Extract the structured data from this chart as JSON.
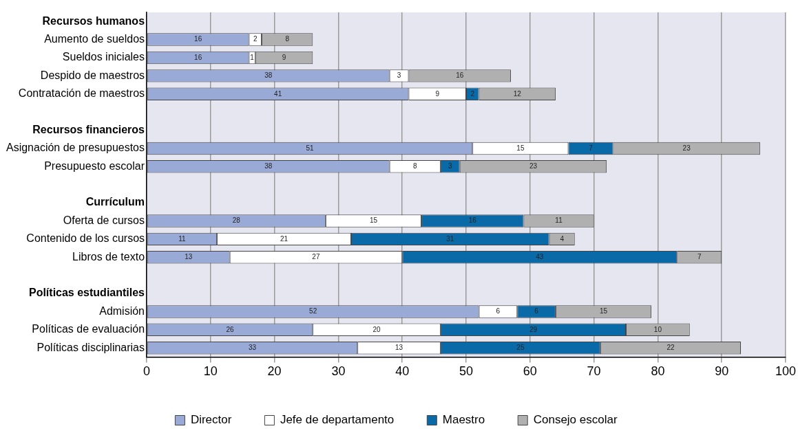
{
  "chart_data": {
    "type": "bar",
    "orientation": "horizontal",
    "stacked": true,
    "categories": [
      "Recursos humanos",
      "Aumento de sueldos",
      "Sueldos iniciales",
      "Despido de maestros",
      "Contratación de maestros",
      null,
      "Recursos financieros",
      "Asignación de presupuestos",
      "Presupuesto escolar",
      null,
      "Currículum",
      "Oferta de cursos",
      "Contenido de los cursos",
      "Libros de texto",
      null,
      "Políticas estudiantiles",
      "Admisión",
      "Políticas de evaluación",
      "Políticas disciplinarias"
    ],
    "series": [
      {
        "name": "Director",
        "color": "#9aaad6",
        "values": [
          null,
          16,
          16,
          38,
          41,
          null,
          null,
          51,
          38,
          null,
          null,
          28,
          11,
          13,
          null,
          null,
          52,
          26,
          33
        ]
      },
      {
        "name": "Jefe de departamento",
        "color": "#ffffff",
        "values": [
          null,
          2,
          1,
          3,
          9,
          null,
          null,
          15,
          8,
          null,
          null,
          15,
          21,
          27,
          null,
          null,
          6,
          20,
          13
        ]
      },
      {
        "name": "Maestro",
        "color": "#0a6aa8",
        "values": [
          null,
          null,
          null,
          null,
          2,
          null,
          null,
          7,
          3,
          null,
          null,
          16,
          31,
          43,
          null,
          null,
          6,
          29,
          25
        ]
      },
      {
        "name": "Consejo escolar",
        "color": "#b0b0b0",
        "values": [
          null,
          8,
          9,
          16,
          12,
          null,
          null,
          23,
          23,
          null,
          null,
          11,
          4,
          7,
          null,
          null,
          15,
          10,
          22
        ]
      }
    ],
    "xlim": [
      0,
      100
    ],
    "xticks": [
      0,
      10,
      20,
      30,
      40,
      50,
      60,
      70,
      80,
      90,
      100
    ],
    "grid": "x",
    "legend": "bottom",
    "data_labels": true
  }
}
